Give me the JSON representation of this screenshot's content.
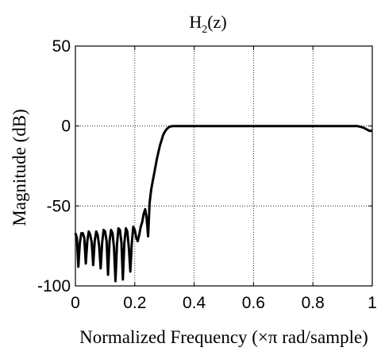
{
  "chart_data": {
    "type": "line",
    "title": "H(z)",
    "title_parts": {
      "main": "H",
      "subscript": "2",
      "suffix": "(z)"
    },
    "xlabel": "Normalized Frequency  (×π rad/sample)",
    "ylabel": "Magnitude (dB)",
    "xlim": [
      0,
      1
    ],
    "ylim": [
      -100,
      50
    ],
    "xticks": [
      0,
      0.2,
      0.4,
      0.6,
      0.8,
      1
    ],
    "xtick_labels": [
      "0",
      "0.2",
      "0.4",
      "0.6",
      "0.8",
      "1"
    ],
    "yticks": [
      -100,
      -50,
      0,
      50
    ],
    "ytick_labels": [
      "-100",
      "-50",
      "0",
      "50"
    ],
    "grid": true,
    "series_color": "#000000",
    "series": [
      {
        "x": [
          0.0,
          0.005,
          0.01,
          0.015,
          0.02,
          0.025,
          0.03,
          0.035,
          0.04,
          0.045,
          0.05,
          0.055,
          0.06,
          0.065,
          0.07,
          0.075,
          0.08,
          0.085,
          0.09,
          0.095,
          0.1,
          0.105,
          0.11,
          0.115,
          0.12,
          0.125,
          0.13,
          0.135,
          0.14,
          0.145,
          0.15,
          0.155,
          0.16,
          0.165,
          0.17,
          0.175,
          0.18,
          0.185,
          0.19,
          0.195,
          0.2,
          0.205,
          0.21,
          0.215,
          0.22,
          0.225,
          0.23,
          0.235,
          0.24,
          0.245,
          0.25,
          0.255,
          0.26,
          0.265,
          0.27,
          0.275,
          0.28,
          0.285,
          0.29,
          0.295,
          0.3,
          0.305,
          0.31,
          0.315,
          0.32,
          0.325,
          0.33,
          0.34,
          0.35,
          0.4,
          0.5,
          0.6,
          0.7,
          0.8,
          0.9,
          0.94,
          0.95,
          0.96,
          0.97,
          0.98,
          0.99,
          1.0
        ],
        "y": [
          -67,
          -70,
          -88,
          -73,
          -67,
          -67,
          -70,
          -86,
          -72,
          -66,
          -68,
          -73,
          -87,
          -72,
          -66,
          -68,
          -75,
          -89,
          -73,
          -65,
          -66,
          -72,
          -93,
          -72,
          -65,
          -67,
          -76,
          -97,
          -74,
          -64,
          -65,
          -73,
          -96,
          -73,
          -64,
          -66,
          -76,
          -91,
          -73,
          -63,
          -65,
          -70,
          -72,
          -68,
          -63,
          -60,
          -55,
          -52,
          -58,
          -69,
          -48,
          -40,
          -35,
          -30,
          -25,
          -20,
          -16,
          -12,
          -9,
          -6,
          -4,
          -2.5,
          -1.5,
          -0.7,
          -0.3,
          -0.1,
          0,
          0,
          0,
          0,
          0,
          0,
          0,
          0,
          0,
          0,
          0,
          -0.5,
          -1,
          -2,
          -3,
          -3
        ]
      }
    ]
  }
}
